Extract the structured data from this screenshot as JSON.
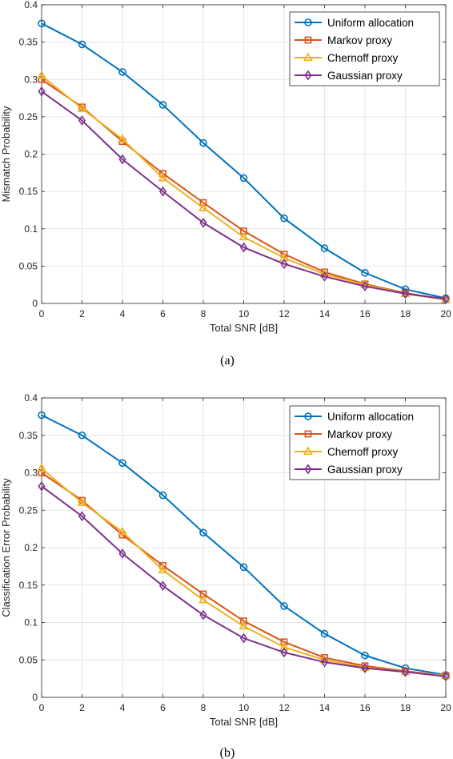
{
  "chart_data": [
    {
      "type": "line",
      "caption": "(a)",
      "xlabel": "Total SNR [dB]",
      "ylabel": "Mismatch Probability",
      "xlim": [
        0,
        20
      ],
      "ylim": [
        0,
        0.4
      ],
      "x": [
        0,
        2,
        4,
        6,
        8,
        10,
        12,
        14,
        16,
        18,
        20
      ],
      "x_ticks": [
        "0",
        "2",
        "4",
        "6",
        "8",
        "10",
        "12",
        "14",
        "16",
        "18",
        "20"
      ],
      "y_ticks": [
        "0",
        "0.05",
        "0.1",
        "0.15",
        "0.2",
        "0.25",
        "0.3",
        "0.35",
        "0.4"
      ],
      "grid": true,
      "legend_position": "top-right",
      "series": [
        {
          "name": "Uniform allocation",
          "color": "#0072BD",
          "marker": "circle",
          "values": [
            0.375,
            0.347,
            0.31,
            0.266,
            0.215,
            0.168,
            0.114,
            0.074,
            0.041,
            0.019,
            0.007
          ]
        },
        {
          "name": "Markov proxy",
          "color": "#D95319",
          "marker": "square",
          "values": [
            0.3,
            0.263,
            0.217,
            0.174,
            0.135,
            0.097,
            0.066,
            0.042,
            0.026,
            0.014,
            0.005
          ]
        },
        {
          "name": "Chernoff proxy",
          "color": "#EDB120",
          "marker": "triangle",
          "values": [
            0.305,
            0.261,
            0.22,
            0.168,
            0.128,
            0.089,
            0.061,
            0.039,
            0.025,
            0.013,
            0.005
          ]
        },
        {
          "name": "Gaussian proxy",
          "color": "#7E2F8E",
          "marker": "diamond",
          "values": [
            0.284,
            0.245,
            0.193,
            0.15,
            0.108,
            0.075,
            0.053,
            0.036,
            0.023,
            0.013,
            0.006
          ]
        }
      ]
    },
    {
      "type": "line",
      "caption": "(b)",
      "xlabel": "Total SNR [dB]",
      "ylabel": "Classification Error Probability",
      "xlim": [
        0,
        20
      ],
      "ylim": [
        0,
        0.4
      ],
      "x": [
        0,
        2,
        4,
        6,
        8,
        10,
        12,
        14,
        16,
        18,
        20
      ],
      "x_ticks": [
        "0",
        "2",
        "4",
        "6",
        "8",
        "10",
        "12",
        "14",
        "16",
        "18",
        "20"
      ],
      "y_ticks": [
        "0",
        "0.05",
        "0.1",
        "0.15",
        "0.2",
        "0.25",
        "0.3",
        "0.35",
        "0.4"
      ],
      "grid": true,
      "legend_position": "top-right",
      "series": [
        {
          "name": "Uniform allocation",
          "color": "#0072BD",
          "marker": "circle",
          "values": [
            0.377,
            0.35,
            0.313,
            0.27,
            0.22,
            0.174,
            0.122,
            0.085,
            0.056,
            0.039,
            0.03
          ]
        },
        {
          "name": "Markov proxy",
          "color": "#D95319",
          "marker": "square",
          "values": [
            0.3,
            0.263,
            0.217,
            0.176,
            0.138,
            0.102,
            0.074,
            0.053,
            0.042,
            0.035,
            0.029
          ]
        },
        {
          "name": "Chernoff proxy",
          "color": "#EDB120",
          "marker": "triangle",
          "values": [
            0.306,
            0.26,
            0.221,
            0.17,
            0.13,
            0.095,
            0.067,
            0.05,
            0.04,
            0.034,
            0.029
          ]
        },
        {
          "name": "Gaussian proxy",
          "color": "#7E2F8E",
          "marker": "diamond",
          "values": [
            0.282,
            0.242,
            0.192,
            0.149,
            0.11,
            0.079,
            0.06,
            0.047,
            0.039,
            0.034,
            0.028
          ]
        }
      ]
    }
  ]
}
